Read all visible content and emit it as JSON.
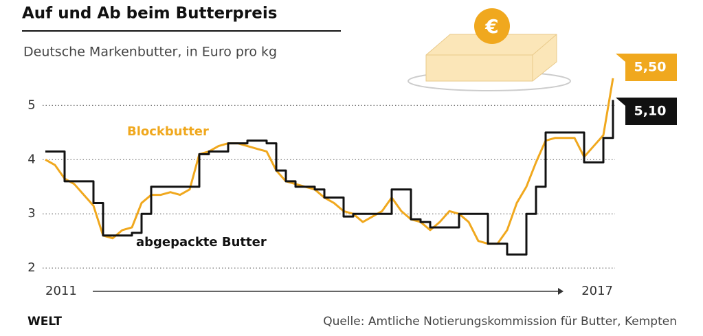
{
  "chart_data": {
    "type": "line",
    "title": "Auf und Ab beim Butterpreis",
    "subtitle": "Deutsche Markenbutter, in Euro pro kg",
    "source": "Quelle: Amtliche Notierungskommission für Butter, Kempten",
    "brand": "WELT",
    "categories": [
      "2011",
      null,
      null,
      null,
      null,
      null,
      null,
      null,
      null,
      null,
      null,
      null,
      null,
      null,
      null,
      null,
      null,
      null,
      null,
      null,
      null,
      null,
      null,
      null,
      null,
      null,
      null,
      null,
      null,
      null,
      null,
      null,
      null,
      null,
      null,
      null,
      null,
      null,
      null,
      null,
      null,
      null,
      null,
      null,
      null,
      null,
      null,
      null,
      null,
      null,
      null,
      null,
      null,
      null,
      null,
      null,
      null,
      null,
      null,
      "2017"
    ],
    "series": [
      {
        "name": "Blockbutter",
        "color": "#f0a81e",
        "step": false,
        "values": [
          4.0,
          3.9,
          3.65,
          3.55,
          3.35,
          3.15,
          2.6,
          2.55,
          2.7,
          2.75,
          3.2,
          3.35,
          3.35,
          3.4,
          3.35,
          3.45,
          4.1,
          4.15,
          4.25,
          4.3,
          4.3,
          4.25,
          4.2,
          4.15,
          3.8,
          3.6,
          3.55,
          3.5,
          3.45,
          3.3,
          3.2,
          3.05,
          3.0,
          2.85,
          2.95,
          3.05,
          3.3,
          3.05,
          2.9,
          2.85,
          2.7,
          2.85,
          3.05,
          3.0,
          2.85,
          2.5,
          2.45,
          2.45,
          2.7,
          3.2,
          3.5,
          3.95,
          4.35,
          4.4,
          4.4,
          4.4,
          4.05,
          4.25,
          4.45,
          5.5
        ],
        "value_labels": [
          null,
          null,
          null,
          null,
          null,
          null,
          null,
          null,
          null,
          null,
          null,
          null,
          null,
          null,
          null,
          null,
          null,
          null,
          null,
          null,
          null,
          null,
          null,
          null,
          null,
          null,
          null,
          null,
          null,
          null,
          null,
          null,
          null,
          null,
          null,
          null,
          null,
          null,
          null,
          null,
          null,
          null,
          null,
          null,
          null,
          null,
          null,
          null,
          null,
          null,
          null,
          null,
          null,
          null,
          null,
          null,
          null,
          null,
          null,
          "5,50"
        ]
      },
      {
        "name": "abgepackte Butter",
        "color": "#111111",
        "step": true,
        "values": [
          4.15,
          4.15,
          3.6,
          3.6,
          3.6,
          3.2,
          2.6,
          2.6,
          2.6,
          2.65,
          3.0,
          3.5,
          3.5,
          3.5,
          3.5,
          3.5,
          4.1,
          4.15,
          4.15,
          4.3,
          4.3,
          4.35,
          4.35,
          4.3,
          3.8,
          3.6,
          3.5,
          3.5,
          3.45,
          3.3,
          3.3,
          2.95,
          3.0,
          3.0,
          3.0,
          3.0,
          3.45,
          3.45,
          2.9,
          2.85,
          2.75,
          2.75,
          2.75,
          3.0,
          3.0,
          3.0,
          2.45,
          2.45,
          2.25,
          2.25,
          3.0,
          3.5,
          4.5,
          4.5,
          4.5,
          4.5,
          3.95,
          3.95,
          4.4,
          5.1
        ],
        "value_labels": [
          null,
          null,
          null,
          null,
          null,
          null,
          null,
          null,
          null,
          null,
          null,
          null,
          null,
          null,
          null,
          null,
          null,
          null,
          null,
          null,
          null,
          null,
          null,
          null,
          null,
          null,
          null,
          null,
          null,
          null,
          null,
          null,
          null,
          null,
          null,
          null,
          null,
          null,
          null,
          null,
          null,
          null,
          null,
          null,
          null,
          null,
          null,
          null,
          null,
          null,
          null,
          null,
          null,
          null,
          null,
          null,
          null,
          null,
          null,
          "5,10"
        ]
      }
    ],
    "ylim": [
      1.85,
      5.6
    ],
    "yticks": [
      2,
      3,
      4,
      5
    ],
    "grid": true
  }
}
